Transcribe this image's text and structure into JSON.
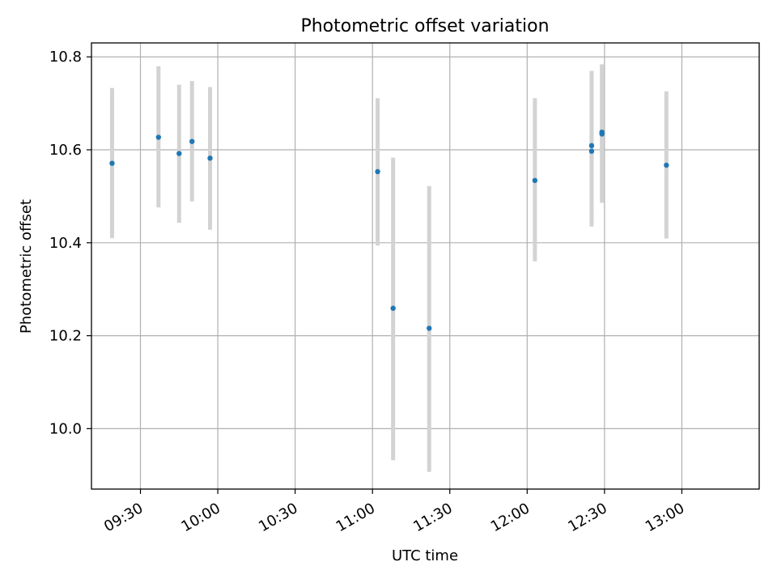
{
  "chart_data": {
    "type": "scatter",
    "title": "Photometric offset variation",
    "xlabel": "UTC time",
    "ylabel": "Photometric offset",
    "x_ticks": [
      "09:30",
      "10:00",
      "10:30",
      "11:00",
      "11:30",
      "12:00",
      "12:30",
      "13:00"
    ],
    "y_ticks": [
      "10.0",
      "10.2",
      "10.4",
      "10.6",
      "10.8"
    ],
    "xlim": [
      "09:11",
      "13:30"
    ],
    "ylim": [
      9.87,
      10.83
    ],
    "grid": true,
    "marker_color": "#1f77b4",
    "errorbar_color": "#d3d3d3",
    "points": [
      {
        "x": "09:19",
        "y": 10.571,
        "ylow": 10.41,
        "yhigh": 10.733
      },
      {
        "x": "09:37",
        "y": 10.627,
        "ylow": 10.476,
        "yhigh": 10.78
      },
      {
        "x": "09:45",
        "y": 10.592,
        "ylow": 10.443,
        "yhigh": 10.74
      },
      {
        "x": "09:50",
        "y": 10.618,
        "ylow": 10.489,
        "yhigh": 10.748
      },
      {
        "x": "09:57",
        "y": 10.582,
        "ylow": 10.428,
        "yhigh": 10.735
      },
      {
        "x": "11:02",
        "y": 10.553,
        "ylow": 10.394,
        "yhigh": 10.711
      },
      {
        "x": "11:08",
        "y": 10.259,
        "ylow": 9.932,
        "yhigh": 10.583
      },
      {
        "x": "11:22",
        "y": 10.216,
        "ylow": 9.907,
        "yhigh": 10.522
      },
      {
        "x": "12:03",
        "y": 10.534,
        "ylow": 10.36,
        "yhigh": 10.711
      },
      {
        "x": "12:25",
        "y": 10.597,
        "ylow": 10.435,
        "yhigh": 10.768
      },
      {
        "x": "12:25",
        "y": 10.609,
        "ylow": 10.455,
        "yhigh": 10.77
      },
      {
        "x": "12:29",
        "y": 10.638,
        "ylow": 10.49,
        "yhigh": 10.782
      },
      {
        "x": "12:29",
        "y": 10.634,
        "ylow": 10.486,
        "yhigh": 10.784
      },
      {
        "x": "12:54",
        "y": 10.567,
        "ylow": 10.409,
        "yhigh": 10.726
      }
    ]
  }
}
